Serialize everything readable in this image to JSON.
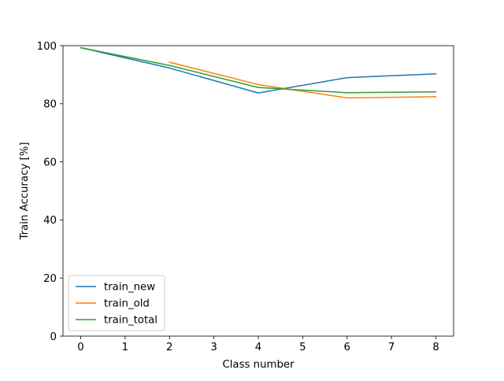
{
  "chart_data": {
    "type": "line",
    "title": "",
    "xlabel": "Class number",
    "ylabel": "Train Accuracy [%]",
    "xlim": [
      -0.4,
      8.4
    ],
    "ylim": [
      0,
      100
    ],
    "xticks": [
      0,
      1,
      2,
      3,
      4,
      5,
      6,
      7,
      8
    ],
    "xtick_labels": [
      "0",
      "1",
      "2",
      "3",
      "4",
      "5",
      "6",
      "7",
      "8"
    ],
    "yticks": [
      0,
      20,
      40,
      60,
      80,
      100
    ],
    "ytick_labels": [
      "0",
      "20",
      "40",
      "60",
      "80",
      "100"
    ],
    "grid": false,
    "legend_position": "lower-left",
    "series": [
      {
        "name": "train_new",
        "color": "#1f77b4",
        "x": [
          0,
          2,
          4,
          6,
          8
        ],
        "y": [
          99.3,
          92.3,
          83.7,
          89.0,
          90.3
        ]
      },
      {
        "name": "train_old",
        "color": "#ff7f0e",
        "x": [
          2,
          4,
          6,
          8
        ],
        "y": [
          94.3,
          86.6,
          82.0,
          82.4
        ]
      },
      {
        "name": "train_total",
        "color": "#2ca02c",
        "x": [
          0,
          2,
          4,
          6,
          8
        ],
        "y": [
          99.3,
          93.2,
          85.6,
          83.8,
          84.1
        ]
      }
    ]
  }
}
